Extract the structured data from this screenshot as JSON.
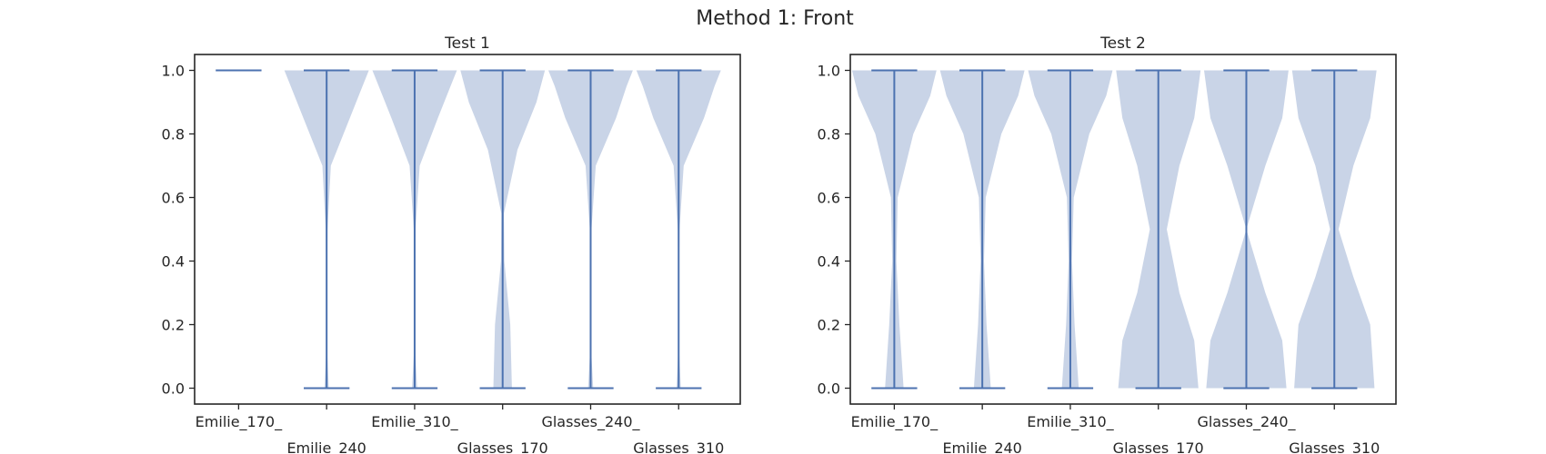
{
  "figure": {
    "title": "Method 1: Front"
  },
  "chart_data": [
    {
      "type": "violin",
      "title": "Test 1",
      "xlabel": "",
      "ylabel": "",
      "ylim": [
        -0.05,
        1.05
      ],
      "yticks": [
        "0.0",
        "0.2",
        "0.4",
        "0.6",
        "0.8",
        "1.0"
      ],
      "categories": [
        "Emilie_170_",
        "Emilie_240",
        "Emilie_310_",
        "Glasses_170",
        "Glasses_240_",
        "Glasses_310"
      ],
      "color": "#4c72b0",
      "violins": [
        {
          "min": 1.0,
          "max": 1.0,
          "density": [
            [
              1.0,
              1.0
            ]
          ]
        },
        {
          "min": 0.0,
          "max": 1.0,
          "density": [
            [
              0.0,
              0.05
            ],
            [
              0.15,
              0.0
            ],
            [
              0.5,
              0.02
            ],
            [
              0.7,
              0.1
            ],
            [
              0.85,
              0.55
            ],
            [
              0.95,
              0.85
            ],
            [
              1.0,
              1.0
            ]
          ]
        },
        {
          "min": 0.0,
          "max": 1.0,
          "density": [
            [
              0.0,
              0.06
            ],
            [
              0.15,
              0.0
            ],
            [
              0.5,
              0.02
            ],
            [
              0.7,
              0.12
            ],
            [
              0.85,
              0.55
            ],
            [
              0.95,
              0.85
            ],
            [
              1.0,
              1.0
            ]
          ]
        },
        {
          "min": 0.0,
          "max": 1.0,
          "density": [
            [
              0.0,
              0.22
            ],
            [
              0.2,
              0.18
            ],
            [
              0.4,
              0.04
            ],
            [
              0.55,
              0.03
            ],
            [
              0.75,
              0.35
            ],
            [
              0.9,
              0.8
            ],
            [
              1.0,
              1.0
            ]
          ]
        },
        {
          "min": 0.0,
          "max": 1.0,
          "density": [
            [
              0.0,
              0.06
            ],
            [
              0.15,
              0.0
            ],
            [
              0.5,
              0.02
            ],
            [
              0.7,
              0.12
            ],
            [
              0.85,
              0.6
            ],
            [
              0.95,
              0.85
            ],
            [
              1.0,
              1.0
            ]
          ]
        },
        {
          "min": 0.0,
          "max": 1.0,
          "density": [
            [
              0.0,
              0.05
            ],
            [
              0.15,
              0.0
            ],
            [
              0.5,
              0.02
            ],
            [
              0.7,
              0.12
            ],
            [
              0.85,
              0.6
            ],
            [
              0.95,
              0.85
            ],
            [
              1.0,
              1.0
            ]
          ]
        }
      ]
    },
    {
      "type": "violin",
      "title": "Test 2",
      "xlabel": "",
      "ylabel": "",
      "ylim": [
        -0.05,
        1.05
      ],
      "yticks": [
        "0.0",
        "0.2",
        "0.4",
        "0.6",
        "0.8",
        "1.0"
      ],
      "categories": [
        "Emilie_170_",
        "Emilie_240",
        "Emilie_310_",
        "Glasses_170",
        "Glasses_240_",
        "Glasses_310"
      ],
      "color": "#4c72b0",
      "violins": [
        {
          "min": 0.0,
          "max": 1.0,
          "density": [
            [
              0.0,
              0.22
            ],
            [
              0.2,
              0.12
            ],
            [
              0.4,
              0.05
            ],
            [
              0.6,
              0.08
            ],
            [
              0.8,
              0.45
            ],
            [
              0.92,
              0.85
            ],
            [
              1.0,
              1.0
            ]
          ]
        },
        {
          "min": 0.0,
          "max": 1.0,
          "density": [
            [
              0.0,
              0.2
            ],
            [
              0.2,
              0.1
            ],
            [
              0.4,
              0.04
            ],
            [
              0.6,
              0.08
            ],
            [
              0.8,
              0.45
            ],
            [
              0.92,
              0.85
            ],
            [
              1.0,
              1.0
            ]
          ]
        },
        {
          "min": 0.0,
          "max": 1.0,
          "density": [
            [
              0.0,
              0.2
            ],
            [
              0.2,
              0.1
            ],
            [
              0.4,
              0.04
            ],
            [
              0.6,
              0.08
            ],
            [
              0.8,
              0.45
            ],
            [
              0.92,
              0.85
            ],
            [
              1.0,
              1.0
            ]
          ]
        },
        {
          "min": 0.0,
          "max": 1.0,
          "density": [
            [
              0.0,
              0.95
            ],
            [
              0.15,
              0.85
            ],
            [
              0.3,
              0.5
            ],
            [
              0.5,
              0.2
            ],
            [
              0.7,
              0.5
            ],
            [
              0.85,
              0.85
            ],
            [
              1.0,
              1.0
            ]
          ]
        },
        {
          "min": 0.0,
          "max": 1.0,
          "density": [
            [
              0.0,
              0.95
            ],
            [
              0.15,
              0.85
            ],
            [
              0.3,
              0.45
            ],
            [
              0.5,
              0.0
            ],
            [
              0.7,
              0.45
            ],
            [
              0.85,
              0.85
            ],
            [
              1.0,
              1.0
            ]
          ]
        },
        {
          "min": 0.0,
          "max": 1.0,
          "density": [
            [
              0.0,
              0.95
            ],
            [
              0.2,
              0.85
            ],
            [
              0.35,
              0.45
            ],
            [
              0.5,
              0.1
            ],
            [
              0.7,
              0.45
            ],
            [
              0.85,
              0.85
            ],
            [
              1.0,
              1.0
            ]
          ]
        }
      ]
    }
  ]
}
